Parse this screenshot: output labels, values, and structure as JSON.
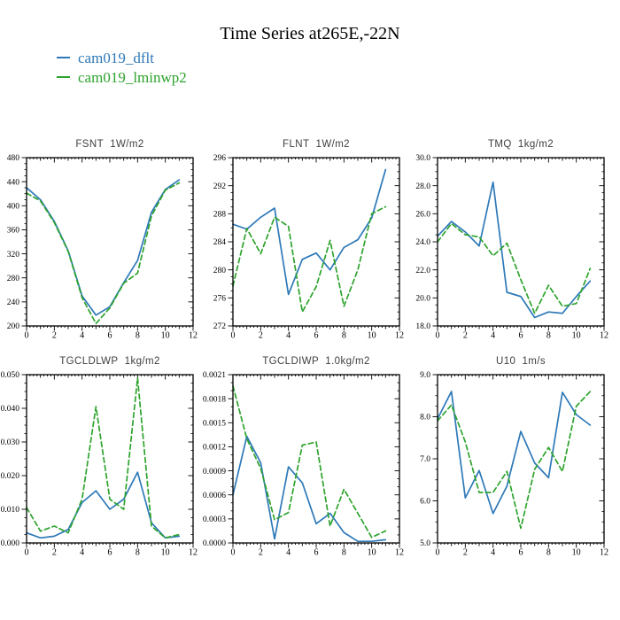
{
  "page": {
    "title": "Time Series at265E,-22N"
  },
  "legend": {
    "items": [
      {
        "label": "cam019_dflt",
        "color": "#2e79b8",
        "dash": "solid"
      },
      {
        "label": "cam019_lminwp2",
        "color": "#2ea32e",
        "dash": "dashed"
      }
    ]
  },
  "colors": {
    "axis": "#000000",
    "subplot_title": "#3f3f3f",
    "blue": "#2e79b8",
    "green": "#2ea32e"
  },
  "chart_data": [
    {
      "type": "line",
      "name": "FSNT",
      "units": "1W/m2",
      "x": [
        0,
        1,
        2,
        3,
        4,
        5,
        6,
        7,
        8,
        9,
        10,
        11
      ],
      "xlim": [
        0,
        12
      ],
      "xticks": [
        "0",
        "2",
        "4",
        "6",
        "8",
        "10",
        "12"
      ],
      "ylim": [
        200,
        480
      ],
      "yticks": [
        200,
        240,
        280,
        320,
        360,
        400,
        440,
        480
      ],
      "ytick_labels": [
        "200",
        "240",
        "280",
        "320",
        "360",
        "400",
        "440",
        "480"
      ],
      "yminor_divs": 4,
      "grid": false,
      "legend_position": "top-left-of-page",
      "series": [
        {
          "name": "cam019_dflt",
          "color": "#2e79b8",
          "dash": "solid",
          "values": [
            430,
            410,
            374,
            325,
            250,
            218,
            232,
            272,
            309,
            389,
            427,
            443
          ]
        },
        {
          "name": "cam019_lminwp2",
          "color": "#2ea32e",
          "dash": "dashed",
          "values": [
            421,
            408,
            372,
            324,
            247,
            204,
            230,
            271,
            288,
            383,
            426,
            438
          ]
        }
      ]
    },
    {
      "type": "line",
      "name": "FLNT",
      "units": "1W/m2",
      "x": [
        0,
        1,
        2,
        3,
        4,
        5,
        6,
        7,
        8,
        9,
        10,
        11
      ],
      "xlim": [
        0,
        12
      ],
      "xticks": [
        "0",
        "2",
        "4",
        "6",
        "8",
        "10",
        "12"
      ],
      "ylim": [
        272,
        296
      ],
      "yticks": [
        272,
        276,
        280,
        284,
        288,
        292,
        296
      ],
      "ytick_labels": [
        "272",
        "276",
        "280",
        "284",
        "288",
        "292",
        "296"
      ],
      "yminor_divs": 4,
      "grid": false,
      "series": [
        {
          "name": "cam019_dflt",
          "color": "#2e79b8",
          "dash": "solid",
          "values": [
            286.5,
            285.8,
            287.5,
            288.8,
            276.5,
            281.5,
            282.4,
            280.0,
            283.2,
            284.3,
            287.4,
            294.3
          ]
        },
        {
          "name": "cam019_lminwp2",
          "color": "#2ea32e",
          "dash": "dashed",
          "values": [
            277.7,
            285.9,
            282.3,
            287.5,
            286.2,
            274.0,
            277.6,
            284.2,
            274.8,
            280.0,
            288.0,
            289.0
          ]
        }
      ]
    },
    {
      "type": "line",
      "name": "TMQ",
      "units": "1kg/m2",
      "x": [
        0,
        1,
        2,
        3,
        4,
        5,
        6,
        7,
        8,
        9,
        10,
        11
      ],
      "xlim": [
        0,
        12
      ],
      "xticks": [
        "0",
        "2",
        "4",
        "6",
        "8",
        "10",
        "12"
      ],
      "ylim": [
        18.0,
        30.0
      ],
      "yticks": [
        18.0,
        20.0,
        22.0,
        24.0,
        26.0,
        28.0,
        30.0
      ],
      "ytick_labels": [
        "18.0",
        "20.0",
        "22.0",
        "24.0",
        "26.0",
        "28.0",
        "30.0"
      ],
      "yminor_divs": 4,
      "grid": false,
      "series": [
        {
          "name": "cam019_dflt",
          "color": "#2e79b8",
          "dash": "solid",
          "values": [
            24.4,
            25.45,
            24.7,
            23.7,
            28.25,
            20.4,
            20.1,
            18.6,
            19.0,
            18.9,
            20.1,
            21.2
          ]
        },
        {
          "name": "cam019_lminwp2",
          "color": "#2ea32e",
          "dash": "dashed",
          "values": [
            24.0,
            25.3,
            24.5,
            24.35,
            23.0,
            23.9,
            21.3,
            18.9,
            20.9,
            19.4,
            19.6,
            22.1
          ]
        }
      ]
    },
    {
      "type": "line",
      "name": "TGCLDLWP",
      "units": "1kg/m2",
      "x": [
        0,
        1,
        2,
        3,
        4,
        5,
        6,
        7,
        8,
        9,
        10,
        11
      ],
      "xlim": [
        0,
        12
      ],
      "xticks": [
        "0",
        "2",
        "4",
        "6",
        "8",
        "10",
        "12"
      ],
      "ylim": [
        0.0,
        0.05
      ],
      "yticks": [
        0.0,
        0.01,
        0.02,
        0.03,
        0.04,
        0.05
      ],
      "ytick_labels": [
        "0.000",
        "0.010",
        "0.020",
        "0.030",
        "0.040",
        "0.050"
      ],
      "yminor_divs": 4,
      "grid": false,
      "series": [
        {
          "name": "cam019_dflt",
          "color": "#2e79b8",
          "dash": "solid",
          "values": [
            0.003,
            0.0015,
            0.002,
            0.004,
            0.012,
            0.0155,
            0.01,
            0.013,
            0.021,
            0.006,
            0.0015,
            0.002
          ]
        },
        {
          "name": "cam019_lminwp2",
          "color": "#2ea32e",
          "dash": "dashed",
          "values": [
            0.0105,
            0.0035,
            0.005,
            0.003,
            0.013,
            0.0405,
            0.013,
            0.01,
            0.049,
            0.005,
            0.0015,
            0.0025
          ]
        }
      ]
    },
    {
      "type": "line",
      "name": "TGCLDIWP",
      "units": "1.0kg/m2",
      "x": [
        0,
        1,
        2,
        3,
        4,
        5,
        6,
        7,
        8,
        9,
        10,
        11
      ],
      "xlim": [
        0,
        12
      ],
      "xticks": [
        "0",
        "2",
        "4",
        "6",
        "8",
        "10",
        "12"
      ],
      "ylim": [
        0.0,
        0.0021
      ],
      "yticks": [
        0.0,
        0.0003,
        0.0006,
        0.0009,
        0.0012,
        0.0015,
        0.0018,
        0.0021
      ],
      "ytick_labels": [
        "0.0000",
        "0.0003",
        "0.0006",
        "0.0009",
        "0.0012",
        "0.0015",
        "0.0018",
        "0.0021"
      ],
      "yminor_divs": 3,
      "grid": false,
      "series": [
        {
          "name": "cam019_dflt",
          "color": "#2e79b8",
          "dash": "solid",
          "values": [
            0.0006,
            0.00133,
            0.001,
            5e-05,
            0.00095,
            0.00075,
            0.00024,
            0.00037,
            0.00013,
            2e-05,
            2e-05,
            4e-05
          ]
        },
        {
          "name": "cam019_lminwp2",
          "color": "#2ea32e",
          "dash": "dashed",
          "values": [
            0.00196,
            0.0013,
            0.00093,
            0.00029,
            0.00038,
            0.00122,
            0.00126,
            0.00021,
            0.00067,
            0.00037,
            7e-05,
            0.00015
          ]
        }
      ]
    },
    {
      "type": "line",
      "name": "U10",
      "units": "1m/s",
      "x": [
        0,
        1,
        2,
        3,
        4,
        5,
        6,
        7,
        8,
        9,
        10,
        11
      ],
      "xlim": [
        0,
        12
      ],
      "xticks": [
        "0",
        "2",
        "4",
        "6",
        "8",
        "10",
        "12"
      ],
      "ylim": [
        5.0,
        9.0
      ],
      "yticks": [
        5.0,
        6.0,
        7.0,
        8.0,
        9.0
      ],
      "ytick_labels": [
        "5.0",
        "6.0",
        "7.0",
        "8.0",
        "9.0"
      ],
      "yminor_divs": 4,
      "grid": false,
      "series": [
        {
          "name": "cam019_dflt",
          "color": "#2e79b8",
          "dash": "solid",
          "values": [
            7.95,
            8.6,
            6.07,
            6.72,
            5.7,
            6.35,
            7.65,
            6.9,
            6.55,
            8.58,
            8.05,
            7.8
          ]
        },
        {
          "name": "cam019_lminwp2",
          "color": "#2ea32e",
          "dash": "dashed",
          "values": [
            7.9,
            8.28,
            7.4,
            6.2,
            6.2,
            6.7,
            5.35,
            6.75,
            7.27,
            6.7,
            8.25,
            8.6
          ]
        }
      ]
    }
  ]
}
